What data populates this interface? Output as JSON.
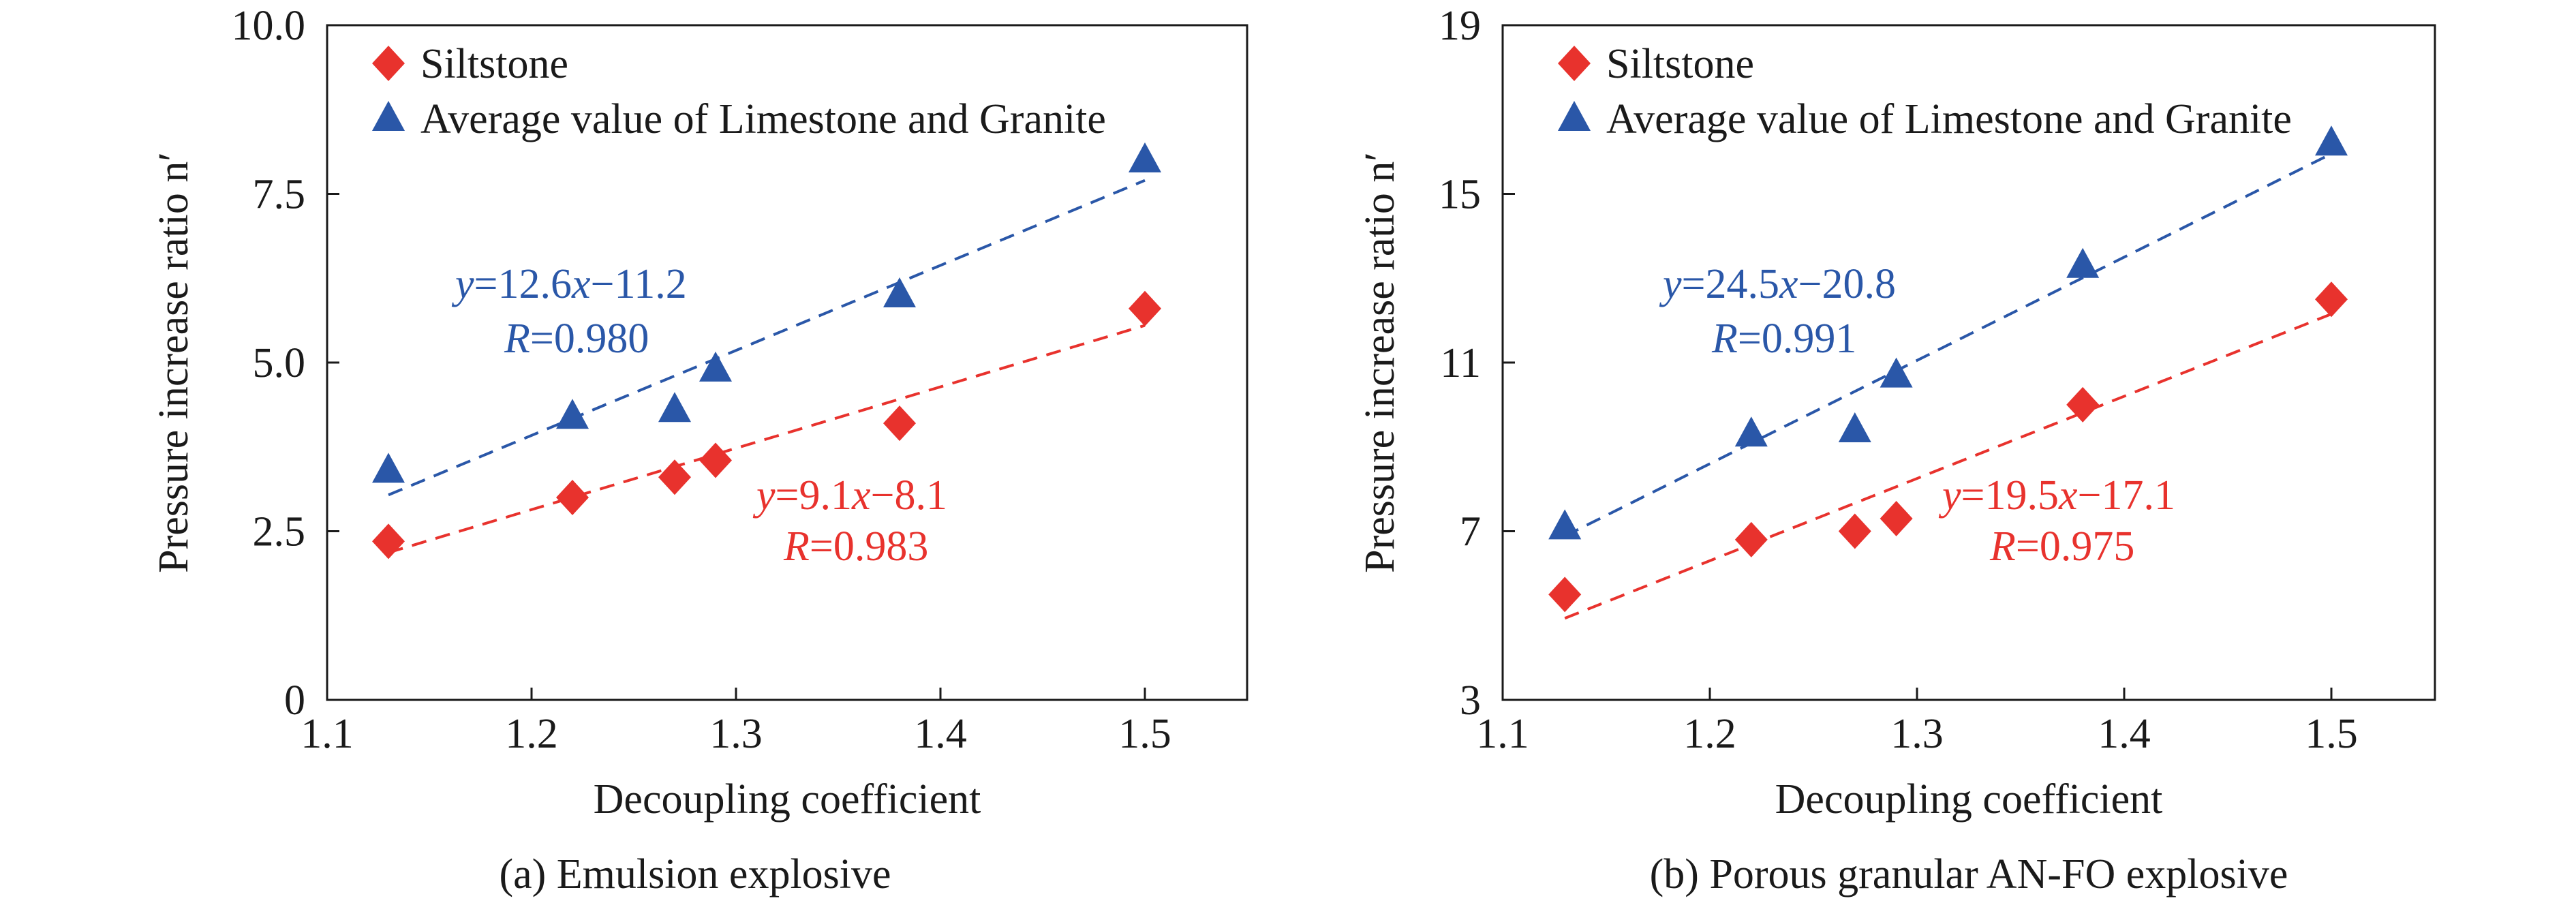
{
  "chart_data": [
    {
      "type": "scatter",
      "caption": "(a) Emulsion explosive",
      "xlabel": "Decoupling coefficient",
      "ylabel": "Pressure increase ratio n′",
      "xlim": [
        1.1,
        1.55
      ],
      "ylim": [
        0,
        10
      ],
      "xticks": [
        1.1,
        1.2,
        1.3,
        1.4,
        1.5
      ],
      "xtick_labels": [
        "1.1",
        "1.2",
        "1.3",
        "1.4",
        "1.5"
      ],
      "yticks": [
        0,
        2.5,
        5.0,
        7.5,
        10.0
      ],
      "ytick_labels": [
        "0",
        "2.5",
        "5.0",
        "7.5",
        "10.0"
      ],
      "legend_position": "top-left",
      "grid": false,
      "series": [
        {
          "name": "Siltstone",
          "marker": "diamond",
          "color": "#e8322d",
          "x": [
            1.13,
            1.22,
            1.27,
            1.29,
            1.38,
            1.5
          ],
          "y": [
            2.35,
            3.0,
            3.3,
            3.55,
            4.1,
            5.8
          ],
          "fit": {
            "slope": 9.1,
            "intercept": -8.1,
            "x_range": [
              1.13,
              1.5
            ],
            "eq_prefix": "y",
            "eq_rest": "=9.1",
            "eq_var": "x",
            "eq_tail": "−8.1",
            "r_prefix": "R",
            "r_rest": "=0.983"
          }
        },
        {
          "name": "Average value of Limestone and Granite",
          "marker": "triangle",
          "color": "#2a57a8",
          "x": [
            1.13,
            1.22,
            1.27,
            1.29,
            1.38,
            1.5
          ],
          "y": [
            3.4,
            4.2,
            4.3,
            4.9,
            6.0,
            8.0
          ],
          "fit": {
            "slope": 12.6,
            "intercept": -11.2,
            "x_range": [
              1.13,
              1.5
            ],
            "eq_prefix": "y",
            "eq_rest": "=12.6",
            "eq_var": "x",
            "eq_tail": "−11.2",
            "r_prefix": "R",
            "r_rest": "=0.980"
          }
        }
      ]
    },
    {
      "type": "scatter",
      "caption": "(b) Porous granular AN-FO explosive",
      "xlabel": "Decoupling coefficient",
      "ylabel": "Pressure increase ratio n′",
      "xlim": [
        1.1,
        1.55
      ],
      "ylim": [
        3,
        19
      ],
      "xticks": [
        1.1,
        1.2,
        1.3,
        1.4,
        1.5
      ],
      "xtick_labels": [
        "1.1",
        "1.2",
        "1.3",
        "1.4",
        "1.5"
      ],
      "yticks": [
        3,
        7,
        11,
        15,
        19
      ],
      "ytick_labels": [
        "3",
        "7",
        "11",
        "15",
        "19"
      ],
      "legend_position": "top-left",
      "grid": false,
      "series": [
        {
          "name": "Siltstone",
          "marker": "diamond",
          "color": "#e8322d",
          "x": [
            1.13,
            1.22,
            1.27,
            1.29,
            1.38,
            1.5
          ],
          "y": [
            5.5,
            6.8,
            7.0,
            7.3,
            10.0,
            12.5
          ],
          "fit": {
            "slope": 19.5,
            "intercept": -17.1,
            "x_range": [
              1.13,
              1.5
            ],
            "eq_prefix": "y",
            "eq_rest": "=19.5",
            "eq_var": "x",
            "eq_tail": "−17.1",
            "r_prefix": "R",
            "r_rest": "=0.975"
          }
        },
        {
          "name": "Average value of Limestone and Granite",
          "marker": "triangle",
          "color": "#2a57a8",
          "x": [
            1.13,
            1.22,
            1.27,
            1.29,
            1.38,
            1.5
          ],
          "y": [
            7.1,
            9.3,
            9.4,
            10.7,
            13.3,
            16.2
          ],
          "fit": {
            "slope": 24.5,
            "intercept": -20.8,
            "x_range": [
              1.13,
              1.5
            ],
            "eq_prefix": "y",
            "eq_rest": "=24.5",
            "eq_var": "x",
            "eq_tail": "−20.8",
            "r_prefix": "R",
            "r_rest": "=0.991"
          }
        }
      ]
    }
  ]
}
